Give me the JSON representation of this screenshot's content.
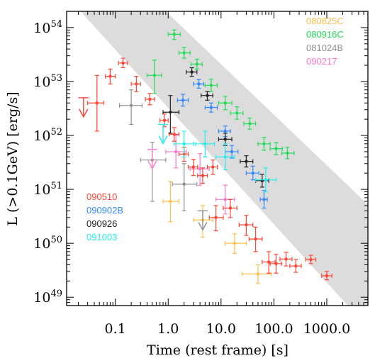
{
  "chart_data": {
    "type": "scatter",
    "xscale": "log",
    "yscale": "log",
    "xlim": [
      0.012,
      6000
    ],
    "ylim": [
      7e+48,
      2e+54
    ],
    "xlabel": "Time (rest frame)  [s]",
    "ylabel": "L (>0.1GeV) [erg/s]",
    "x_tick_labels": [
      {
        "value": 0.1,
        "text": "0.1"
      },
      {
        "value": 1,
        "text": "1.0"
      },
      {
        "value": 10,
        "text": "10.0"
      },
      {
        "value": 100,
        "text": "100.0"
      },
      {
        "value": 1000,
        "text": "1000.0"
      }
    ],
    "y_tick_labels": [
      {
        "value": 1e+49,
        "base": "10",
        "exp": "49"
      },
      {
        "value": 1e+50,
        "base": "10",
        "exp": "50"
      },
      {
        "value": 1e+51,
        "base": "10",
        "exp": "51"
      },
      {
        "value": 1e+52,
        "base": "10",
        "exp": "52"
      },
      {
        "value": 1e+53,
        "base": "10",
        "exp": "53"
      },
      {
        "value": 1e+54,
        "base": "10",
        "exp": "54"
      }
    ],
    "band": {
      "color": "#dcdcdc",
      "upper_edge": [
        [
          0.022,
          2e+54
        ],
        [
          2500,
          7e+48
        ]
      ],
      "lower_edge": [
        [
          0.9,
          2e+54
        ],
        [
          600000,
          7e+48
        ]
      ]
    },
    "legends": [
      {
        "label": "080825C",
        "color": "#ffc04d",
        "position": "top-right"
      },
      {
        "label": "080916C",
        "color": "#22dd55",
        "position": "top-right"
      },
      {
        "label": "081024B",
        "color": "#909090",
        "position": "top-right"
      },
      {
        "label": "090217",
        "color": "#ff77cc",
        "position": "top-right"
      },
      {
        "label": "090510",
        "color": "#ff4433",
        "position": "middle-left"
      },
      {
        "label": "090902B",
        "color": "#3388ff",
        "position": "middle-left"
      },
      {
        "label": "090926",
        "color": "#222222",
        "position": "middle-left"
      },
      {
        "label": "091003",
        "color": "#22eeee",
        "position": "middle-left"
      }
    ],
    "series": [
      {
        "name": "080825C",
        "color": "#ffc04d",
        "points": [
          {
            "x": 1.1,
            "y": 6e+50,
            "xerr": [
              0.8,
              1.6
            ],
            "yerr": [
              2.5e+50,
              1.4e+51
            ]
          },
          {
            "x": 4.5,
            "y": 2.7e+50,
            "xerr": [
              3.0,
              7.0
            ],
            "yerr": [
              1.3e+50,
              5e+50
            ]
          },
          {
            "x": 18,
            "y": 1e+50,
            "xerr": [
              12,
              30
            ],
            "yerr": [
              6.5e+49,
              1.5e+50
            ]
          },
          {
            "x": 50,
            "y": 2.7e+49,
            "xerr": [
              25,
              90
            ],
            "yerr": [
              1.8e+49,
              4e+49
            ]
          }
        ]
      },
      {
        "name": "080916C",
        "color": "#22dd55",
        "points": [
          {
            "x": 0.55,
            "y": 1.3e+53,
            "xerr": [
              0.4,
              0.75
            ],
            "yerr": [
              6e+52,
              2.5e+53
            ]
          },
          {
            "x": 1.3,
            "y": 7.5e+53,
            "xerr": [
              1.0,
              1.7
            ],
            "yerr": [
              6e+53,
              9e+53
            ]
          },
          {
            "x": 2.0,
            "y": 3.4e+53,
            "xerr": [
              1.6,
              2.6
            ],
            "yerr": [
              2.7e+53,
              4.3e+53
            ]
          },
          {
            "x": 3.5,
            "y": 2.1e+53,
            "xerr": [
              2.7,
              4.4
            ],
            "yerr": [
              1.7e+53,
              2.6e+53
            ]
          },
          {
            "x": 6.5,
            "y": 8.5e+52,
            "xerr": [
              5.0,
              8.5
            ],
            "yerr": [
              6.5e+52,
              1.1e+53
            ]
          },
          {
            "x": 12,
            "y": 4e+52,
            "xerr": [
              9.0,
              16
            ],
            "yerr": [
              3e+52,
              5.3e+52
            ]
          },
          {
            "x": 20,
            "y": 2.6e+52,
            "xerr": [
              15,
              26
            ],
            "yerr": [
              2e+52,
              3.4e+52
            ]
          },
          {
            "x": 35,
            "y": 1.65e+52,
            "xerr": [
              27,
              45
            ],
            "yerr": [
              1.3e+52,
              2.1e+52
            ]
          },
          {
            "x": 65,
            "y": 7e+51,
            "xerr": [
              50,
              85
            ],
            "yerr": [
              5.3e+51,
              9.2e+51
            ]
          },
          {
            "x": 110,
            "y": 5.7e+51,
            "xerr": [
              85,
              145
            ],
            "yerr": [
              4.4e+51,
              7.4e+51
            ]
          },
          {
            "x": 180,
            "y": 4.7e+51,
            "xerr": [
              140,
              240
            ],
            "yerr": [
              3.7e+51,
              6e+51
            ]
          }
        ]
      },
      {
        "name": "081024B",
        "color": "#909090",
        "points": [
          {
            "x": 0.2,
            "y": 3.6e+52,
            "xerr": [
              0.12,
              0.32
            ],
            "yerr": [
              1.6e+52,
              7e+52
            ]
          },
          {
            "x": 0.5,
            "y": 3.5e+51,
            "xerr": [
              0.3,
              0.9
            ],
            "yerr": [
              6e+50,
              7.5e+51
            ]
          },
          {
            "x": 2.0,
            "y": 1.25e+51,
            "xerr": [
              1.2,
              3.5
            ],
            "yerr": [
              4e+50,
              3e+51
            ]
          },
          {
            "x": 4.5,
            "y": 4e+50,
            "upper_limit": true
          }
        ]
      },
      {
        "name": "090217",
        "color": "#ff77cc",
        "points": [
          {
            "x": 0.5,
            "y": 5.5e+51,
            "upper_limit": true
          },
          {
            "x": 1.4,
            "y": 5e+51,
            "xerr": [
              0.9,
              2.2
            ],
            "yerr": [
              2.5e+51,
              1e+52
            ]
          },
          {
            "x": 4.0,
            "y": 2.4e+51,
            "xerr": [
              2.6,
              6.0
            ],
            "yerr": [
              1.2e+51,
              4.6e+51
            ]
          },
          {
            "x": 12,
            "y": 6.5e+50,
            "xerr": [
              8.0,
              18
            ],
            "yerr": [
              3.5e+50,
              1.2e+51
            ]
          }
        ]
      },
      {
        "name": "090510",
        "color": "#ff4433",
        "points": [
          {
            "x": 0.025,
            "y": 5e+52,
            "upper_limit": true
          },
          {
            "x": 0.045,
            "y": 4e+52,
            "xerr": [
              0.03,
              0.06
            ],
            "yerr": [
              1.2e+52,
              1.3e+53
            ]
          },
          {
            "x": 0.08,
            "y": 1.25e+53,
            "xerr": [
              0.065,
              0.1
            ],
            "yerr": [
              9e+52,
              1.7e+53
            ]
          },
          {
            "x": 0.14,
            "y": 2.2e+53,
            "xerr": [
              0.115,
              0.17
            ],
            "yerr": [
              1.8e+53,
              2.7e+53
            ]
          },
          {
            "x": 0.25,
            "y": 9e+52,
            "xerr": [
              0.2,
              0.3
            ],
            "yerr": [
              6.5e+52,
              1.25e+53
            ]
          },
          {
            "x": 0.45,
            "y": 4.7e+52,
            "xerr": [
              0.37,
              0.55
            ],
            "yerr": [
              3.7e+52,
              6e+52
            ]
          },
          {
            "x": 0.85,
            "y": 1.9e+52,
            "xerr": [
              0.7,
              1.0
            ],
            "yerr": [
              1.45e+52,
              2.5e+52
            ]
          },
          {
            "x": 1.3,
            "y": 1.05e+52,
            "xerr": [
              1.05,
              1.6
            ],
            "yerr": [
              7.8e+51,
              1.4e+52
            ]
          },
          {
            "x": 2.0,
            "y": 4.5e+51,
            "xerr": [
              1.6,
              2.4
            ],
            "yerr": [
              3.3e+51,
              6e+51
            ]
          },
          {
            "x": 3.0,
            "y": 2.6e+51,
            "xerr": [
              2.4,
              3.6
            ],
            "yerr": [
              1.8e+51,
              3.6e+51
            ]
          },
          {
            "x": 4.5,
            "y": 1.8e+51,
            "xerr": [
              3.6,
              5.5
            ],
            "yerr": [
              1.3e+51,
              2.5e+51
            ]
          },
          {
            "x": 7.0,
            "y": 2.6e+51,
            "xerr": [
              5.5,
              8.5
            ],
            "yerr": [
              1.9e+51,
              3.5e+51
            ]
          },
          {
            "x": 8.0,
            "y": 3e+50,
            "xerr": [
              6.0,
              11
            ],
            "yerr": [
              1.7e+50,
              5e+50
            ]
          },
          {
            "x": 15,
            "y": 4.5e+50,
            "xerr": [
              11,
              20
            ],
            "yerr": [
              3e+50,
              6.5e+50
            ]
          },
          {
            "x": 30,
            "y": 2.2e+50,
            "xerr": [
              22,
              40
            ],
            "yerr": [
              1.4e+50,
              3.3e+50
            ]
          },
          {
            "x": 45,
            "y": 1.2e+50,
            "xerr": [
              34,
              60
            ],
            "yerr": [
              7e+49,
              2e+50
            ]
          },
          {
            "x": 80,
            "y": 4.5e+49,
            "xerr": [
              60,
              105
            ],
            "yerr": [
              2.8e+49,
              7e+49
            ]
          },
          {
            "x": 110,
            "y": 4.2e+49,
            "xerr": [
              85,
              140
            ],
            "yerr": [
              2.8e+49,
              6.2e+49
            ]
          },
          {
            "x": 170,
            "y": 5.1e+49,
            "xerr": [
              130,
              220
            ],
            "yerr": [
              3.8e+49,
              6.8e+49
            ]
          },
          {
            "x": 260,
            "y": 3.8e+49,
            "xerr": [
              200,
              330
            ],
            "yerr": [
              2.9e+49,
              5e+49
            ]
          },
          {
            "x": 500,
            "y": 5e+49,
            "xerr": [
              400,
              620
            ],
            "yerr": [
              4.2e+49,
              6e+49
            ]
          },
          {
            "x": 1000,
            "y": 2.5e+49,
            "xerr": [
              800,
              1250
            ],
            "yerr": [
              2.1e+49,
              3e+49
            ]
          }
        ]
      },
      {
        "name": "090902B",
        "color": "#3388ff",
        "points": [
          {
            "x": 1.9,
            "y": 4.5e+52,
            "xerr": [
              1.5,
              2.4
            ],
            "yerr": [
              3.5e+52,
              5.8e+52
            ]
          },
          {
            "x": 3.8,
            "y": 9e+52,
            "xerr": [
              3.0,
              4.7
            ],
            "yerr": [
              7.5e+52,
              1.08e+53
            ]
          },
          {
            "x": 6.5,
            "y": 3.3e+52,
            "xerr": [
              5.0,
              8.5
            ],
            "yerr": [
              2.7e+52,
              4e+52
            ]
          },
          {
            "x": 12,
            "y": 1.2e+52,
            "xerr": [
              9.0,
              15
            ],
            "yerr": [
              9.5e+51,
              1.5e+52
            ]
          },
          {
            "x": 16,
            "y": 5e+51,
            "xerr": [
              12,
              21
            ],
            "yerr": [
              3.8e+51,
              6.5e+51
            ]
          },
          {
            "x": 40,
            "y": 2e+51,
            "xerr": [
              30,
              52
            ],
            "yerr": [
              1.5e+51,
              2.7e+51
            ]
          },
          {
            "x": 65,
            "y": 6.5e+50,
            "xerr": [
              55,
              75
            ],
            "yerr": [
              4.5e+50,
              9.5e+50
            ]
          }
        ]
      },
      {
        "name": "090926",
        "color": "#222222",
        "points": [
          {
            "x": 1.1,
            "y": 2.7e+52,
            "xerr": [
              0.8,
              1.6
            ],
            "yerr": [
              1.1e+52,
              5.5e+52
            ]
          },
          {
            "x": 2.8,
            "y": 1.5e+53,
            "xerr": [
              2.2,
              3.5
            ],
            "yerr": [
              1.25e+53,
              1.8e+53
            ]
          },
          {
            "x": 5.5,
            "y": 5.5e+52,
            "xerr": [
              4.2,
              7.0
            ],
            "yerr": [
              4.5e+52,
              6.5e+52
            ]
          },
          {
            "x": 12,
            "y": 8.5e+51,
            "xerr": [
              9.0,
              16
            ],
            "yerr": [
              6.5e+51,
              1.1e+52
            ]
          },
          {
            "x": 30,
            "y": 3.3e+51,
            "xerr": [
              23,
              40
            ],
            "yerr": [
              2.6e+51,
              4.2e+51
            ]
          },
          {
            "x": 60,
            "y": 1.45e+51,
            "xerr": [
              45,
              80
            ],
            "yerr": [
              1.1e+51,
              1.9e+51
            ]
          }
        ]
      },
      {
        "name": "091003",
        "color": "#22eeee",
        "points": [
          {
            "x": 0.8,
            "y": 1.6e+52,
            "upper_limit": true
          },
          {
            "x": 2.0,
            "y": 7e+51,
            "xerr": [
              1.3,
              3.0
            ],
            "yerr": [
              4e+51,
              1.2e+52
            ]
          },
          {
            "x": 5.0,
            "y": 7e+51,
            "xerr": [
              3.3,
              7.5
            ],
            "yerr": [
              4e+51,
              1.2e+52
            ]
          },
          {
            "x": 12,
            "y": 4e+51,
            "xerr": [
              8.0,
              18
            ],
            "yerr": [
              2.3e+51,
              7e+51
            ]
          },
          {
            "x": 70,
            "y": 1.5e+51,
            "xerr": [
              45,
              110
            ],
            "yerr": [
              9e+50,
              2.5e+51
            ]
          }
        ]
      }
    ]
  }
}
